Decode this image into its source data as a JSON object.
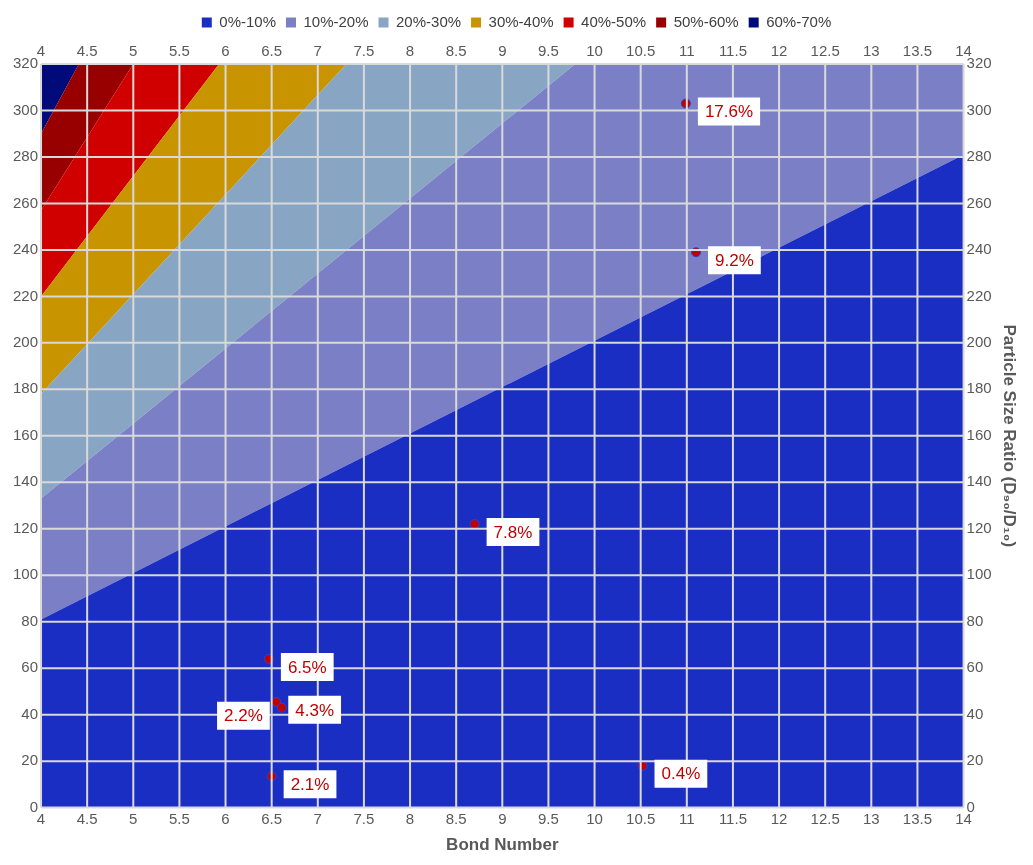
{
  "chart_data": {
    "type": "area",
    "xlabel": "Bond Number",
    "y2label": "Particle Size Ratio (D₉₀/D₁₀)",
    "legend": "top",
    "grid": true,
    "xlim": [
      4,
      14
    ],
    "xticks": [
      4,
      4.5,
      5,
      5.5,
      6,
      6.5,
      7,
      7.5,
      8,
      8.5,
      9,
      9.5,
      10,
      10.5,
      11,
      11.5,
      12,
      12.5,
      13,
      13.5,
      14
    ],
    "x2lim": [
      4,
      14
    ],
    "x2ticks": [
      4,
      4.5,
      5,
      5.5,
      6,
      6.5,
      7,
      7.5,
      8,
      8.5,
      9,
      9.5,
      10,
      10.5,
      11,
      11.5,
      12,
      12.5,
      13,
      13.5,
      14
    ],
    "ylim": [
      0,
      320
    ],
    "yticks": [
      0,
      20,
      40,
      60,
      80,
      100,
      120,
      140,
      160,
      180,
      200,
      220,
      240,
      260,
      280,
      300,
      320
    ],
    "y2lim": [
      0,
      320
    ],
    "y2ticks": [
      0,
      20,
      40,
      60,
      80,
      100,
      120,
      140,
      160,
      180,
      200,
      220,
      240,
      260,
      280,
      300,
      320
    ],
    "series": [
      {
        "name": "0%-10%",
        "color": "#1a2ec4",
        "x": [
          4,
          14
        ],
        "values": [
          81,
          281
        ]
      },
      {
        "name": "10%-20%",
        "color": "#7b80c6",
        "x": [
          4,
          9.79,
          14
        ],
        "values": [
          133,
          320,
          320
        ]
      },
      {
        "name": "20%-30%",
        "color": "#88a6c4",
        "x": [
          4,
          7.31,
          14
        ],
        "values": [
          178,
          320,
          320
        ]
      },
      {
        "name": "30%-40%",
        "color": "#c89400",
        "x": [
          4,
          5.93,
          14
        ],
        "values": [
          220,
          320,
          320
        ]
      },
      {
        "name": "40%-50%",
        "color": "#d00000",
        "x": [
          4,
          5.0,
          14
        ],
        "values": [
          257,
          320,
          320
        ]
      },
      {
        "name": "50%-60%",
        "color": "#980000",
        "x": [
          4,
          4.41,
          14
        ],
        "values": [
          290,
          320,
          320
        ]
      },
      {
        "name": "60%-70%",
        "color": "#000a78",
        "x": [
          4,
          14
        ],
        "values": [
          320,
          320
        ]
      },
      {
        "type": "scatter",
        "marker": "circle",
        "color": "#c00000",
        "x": [
          10.99,
          11.1,
          8.7,
          6.47,
          6.55,
          6.61,
          6.5,
          10.52
        ],
        "values": [
          303,
          239,
          122,
          64,
          45.5,
          43,
          13.5,
          18
        ]
      }
    ],
    "annotations": [
      {
        "text": "17.6%",
        "x": 10.99,
        "y": 303
      },
      {
        "text": "9.2%",
        "x": 11.1,
        "y": 239
      },
      {
        "text": "7.8%",
        "x": 8.7,
        "y": 122
      },
      {
        "text": "6.5%",
        "x": 6.47,
        "y": 64
      },
      {
        "text": "4.3%",
        "x": 6.55,
        "y": 45.5
      },
      {
        "text": "2.2%",
        "x": 6.61,
        "y": 43
      },
      {
        "text": "2.1%",
        "x": 6.5,
        "y": 13.5
      },
      {
        "text": "0.4%",
        "x": 10.52,
        "y": 18
      }
    ]
  }
}
